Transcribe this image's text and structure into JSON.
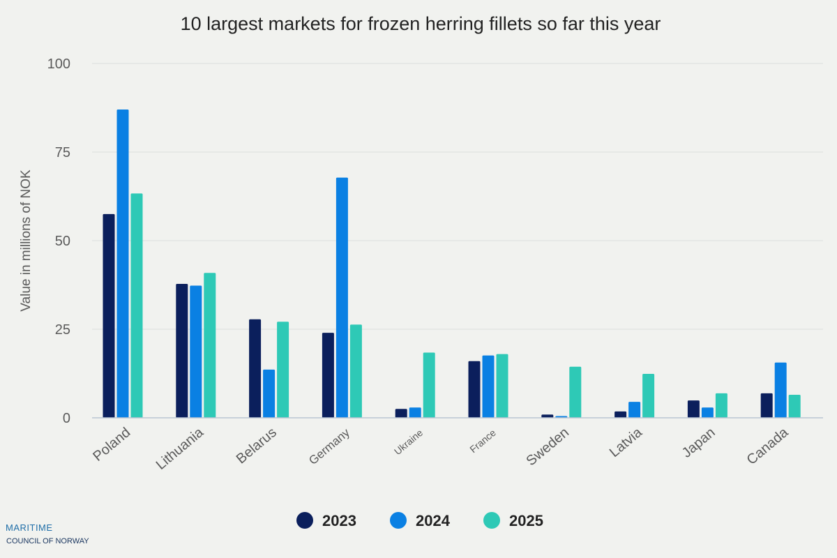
{
  "chart_data": {
    "type": "bar",
    "title": "10 largest markets for frozen herring fillets so far this year",
    "ylabel": "Value in millions of NOK",
    "xlabel": "",
    "ylim": [
      0,
      100
    ],
    "yticks": [
      0,
      25,
      50,
      75,
      100
    ],
    "grid": true,
    "legend_position": "bottom",
    "categories": [
      "Poland",
      "Lithuania",
      "Belarus",
      "Germany",
      "Ukraine",
      "France",
      "Sweden",
      "Latvia",
      "Japan",
      "Canada"
    ],
    "series": [
      {
        "name": "2023",
        "color": "#0b1f5c",
        "values": [
          57.5,
          37.8,
          27.8,
          24.0,
          2.5,
          16.0,
          0.9,
          1.8,
          4.9,
          6.9
        ]
      },
      {
        "name": "2024",
        "color": "#0a80e3",
        "values": [
          87.0,
          37.3,
          13.6,
          67.8,
          2.9,
          17.6,
          0.5,
          4.5,
          2.9,
          15.6
        ]
      },
      {
        "name": "2025",
        "color": "#2ec9b6",
        "values": [
          63.3,
          40.9,
          27.1,
          26.3,
          18.4,
          18.0,
          14.4,
          12.4,
          6.9,
          6.5
        ]
      }
    ]
  },
  "logo": {
    "line1": "MARITIME",
    "line2": "COUNCIL OF NORWAY"
  }
}
